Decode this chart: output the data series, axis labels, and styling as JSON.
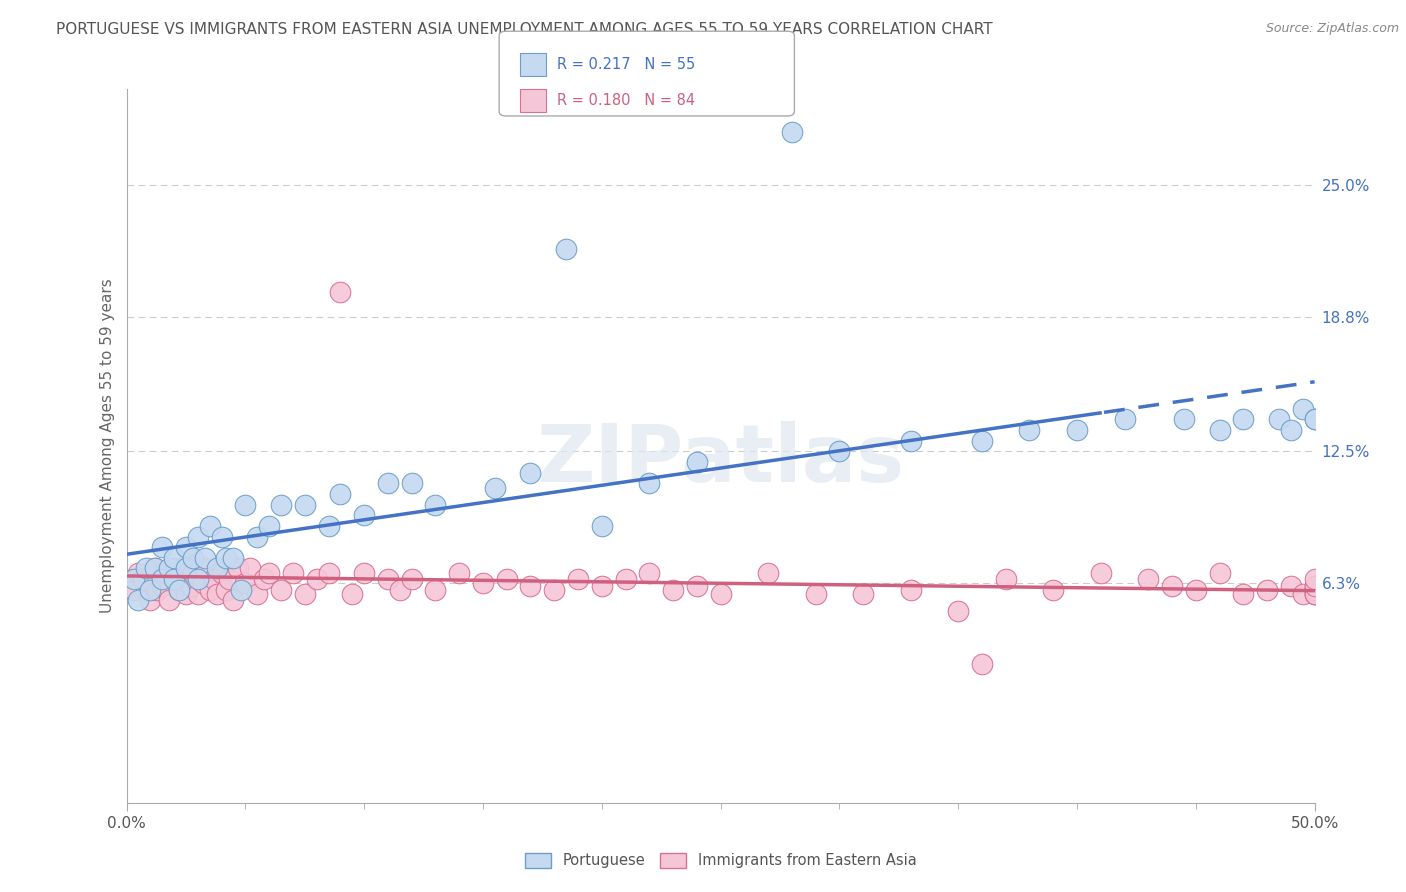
{
  "title": "PORTUGUESE VS IMMIGRANTS FROM EASTERN ASIA UNEMPLOYMENT AMONG AGES 55 TO 59 YEARS CORRELATION CHART",
  "source": "Source: ZipAtlas.com",
  "ylabel": "Unemployment Among Ages 55 to 59 years",
  "xlim": [
    0.0,
    0.5
  ],
  "ylim": [
    -0.04,
    0.295
  ],
  "yticks": [
    0.063,
    0.125,
    0.188,
    0.25
  ],
  "ytick_labels": [
    "6.3%",
    "12.5%",
    "18.8%",
    "25.0%"
  ],
  "xtick_positions": [
    0.0,
    0.5
  ],
  "xtick_labels": [
    "0.0%",
    "50.0%"
  ],
  "right_ytick_labels": [
    "6.3%",
    "12.5%",
    "18.8%",
    "25.0%"
  ],
  "portuguese_color": "#c5d9f0",
  "portuguese_edge_color": "#6b9ec8",
  "immigrants_color": "#f5c6d8",
  "immigrants_edge_color": "#d97090",
  "portuguese_label": "Portuguese",
  "immigrants_label": "Immigrants from Eastern Asia",
  "R_portuguese": "0.217",
  "N_portuguese": "55",
  "R_immigrants": "0.180",
  "N_immigrants": "84",
  "legend_text_color_portuguese": "#4472c4",
  "legend_text_color_immigrants": "#d06080",
  "trend_color_portuguese": "#4472c4",
  "trend_color_immigrants": "#d06080",
  "watermark": "ZIPatlas",
  "background_color": "#ffffff",
  "grid_color": "#cccccc",
  "title_fontsize": 11,
  "axis_label_fontsize": 11,
  "tick_fontsize": 11,
  "portuguese_x": [
    0.003,
    0.005,
    0.008,
    0.01,
    0.012,
    0.015,
    0.015,
    0.018,
    0.02,
    0.02,
    0.022,
    0.025,
    0.025,
    0.028,
    0.03,
    0.03,
    0.033,
    0.035,
    0.038,
    0.04,
    0.042,
    0.045,
    0.048,
    0.05,
    0.055,
    0.06,
    0.065,
    0.075,
    0.085,
    0.09,
    0.1,
    0.11,
    0.12,
    0.13,
    0.155,
    0.17,
    0.185,
    0.2,
    0.22,
    0.24,
    0.28,
    0.3,
    0.33,
    0.36,
    0.38,
    0.4,
    0.42,
    0.445,
    0.46,
    0.47,
    0.485,
    0.49,
    0.495,
    0.5,
    0.5
  ],
  "portuguese_y": [
    0.065,
    0.055,
    0.07,
    0.06,
    0.07,
    0.065,
    0.08,
    0.07,
    0.065,
    0.075,
    0.06,
    0.07,
    0.08,
    0.075,
    0.065,
    0.085,
    0.075,
    0.09,
    0.07,
    0.085,
    0.075,
    0.075,
    0.06,
    0.1,
    0.085,
    0.09,
    0.1,
    0.1,
    0.09,
    0.105,
    0.095,
    0.11,
    0.11,
    0.1,
    0.108,
    0.115,
    0.22,
    0.09,
    0.11,
    0.12,
    0.275,
    0.125,
    0.13,
    0.13,
    0.135,
    0.135,
    0.14,
    0.14,
    0.135,
    0.14,
    0.14,
    0.135,
    0.145,
    0.14,
    0.14
  ],
  "immigrants_x": [
    0.003,
    0.005,
    0.007,
    0.01,
    0.012,
    0.013,
    0.015,
    0.016,
    0.018,
    0.02,
    0.022,
    0.023,
    0.025,
    0.026,
    0.027,
    0.028,
    0.03,
    0.032,
    0.033,
    0.035,
    0.037,
    0.038,
    0.04,
    0.042,
    0.043,
    0.045,
    0.047,
    0.05,
    0.052,
    0.055,
    0.058,
    0.06,
    0.065,
    0.07,
    0.075,
    0.08,
    0.085,
    0.09,
    0.095,
    0.1,
    0.11,
    0.115,
    0.12,
    0.13,
    0.14,
    0.15,
    0.16,
    0.17,
    0.18,
    0.19,
    0.2,
    0.21,
    0.22,
    0.23,
    0.24,
    0.25,
    0.27,
    0.29,
    0.31,
    0.33,
    0.35,
    0.36,
    0.37,
    0.39,
    0.41,
    0.43,
    0.44,
    0.45,
    0.46,
    0.47,
    0.48,
    0.49,
    0.495,
    0.5,
    0.5,
    0.5,
    0.5,
    0.5,
    0.5,
    0.5,
    0.5,
    0.5,
    0.5,
    0.5
  ],
  "immigrants_y": [
    0.06,
    0.068,
    0.065,
    0.055,
    0.07,
    0.06,
    0.062,
    0.068,
    0.055,
    0.07,
    0.06,
    0.065,
    0.058,
    0.072,
    0.062,
    0.068,
    0.058,
    0.063,
    0.07,
    0.06,
    0.065,
    0.058,
    0.068,
    0.06,
    0.065,
    0.055,
    0.07,
    0.063,
    0.07,
    0.058,
    0.065,
    0.068,
    0.06,
    0.068,
    0.058,
    0.065,
    0.068,
    0.2,
    0.058,
    0.068,
    0.065,
    0.06,
    0.065,
    0.06,
    0.068,
    0.063,
    0.065,
    0.062,
    0.06,
    0.065,
    0.062,
    0.065,
    0.068,
    0.06,
    0.062,
    0.058,
    0.068,
    0.058,
    0.058,
    0.06,
    0.05,
    0.025,
    0.065,
    0.06,
    0.068,
    0.065,
    0.062,
    0.06,
    0.068,
    0.058,
    0.06,
    0.062,
    0.058,
    0.06,
    0.06,
    0.058,
    0.06,
    0.062,
    0.058,
    0.06,
    0.06,
    0.058,
    0.062,
    0.065
  ]
}
